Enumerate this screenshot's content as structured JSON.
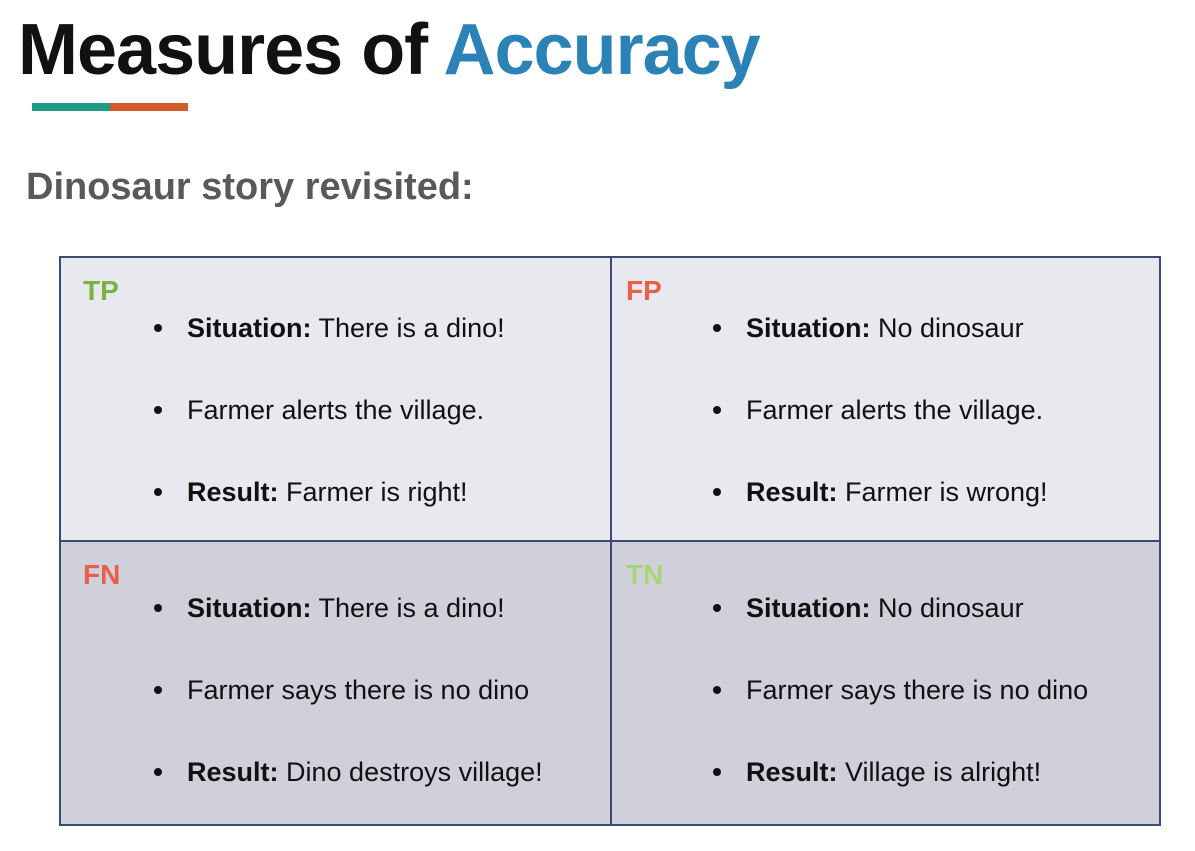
{
  "title": {
    "word1": "Measures of",
    "word2": "Accuracy"
  },
  "underline_colors": [
    "#1e9b86",
    "#d3582a"
  ],
  "subtitle": "Dinosaur story revisited:",
  "cells": {
    "tp": {
      "label": "TP",
      "label_color": "#7ab342",
      "bullets": [
        {
          "bold": "Situation:",
          "text": " There is a dino!"
        },
        {
          "bold": "",
          "text": "Farmer alerts the village."
        },
        {
          "bold": "Result:",
          "text": " Farmer is right!"
        }
      ]
    },
    "fp": {
      "label": "FP",
      "label_color": "#e8604a",
      "bullets": [
        {
          "bold": "Situation:",
          "text": " No dinosaur"
        },
        {
          "bold": "",
          "text": "Farmer alerts the village."
        },
        {
          "bold": "Result:",
          "text": " Farmer is wrong!"
        }
      ]
    },
    "fn": {
      "label": "FN",
      "label_color": "#e8604a",
      "bullets": [
        {
          "bold": "Situation:",
          "text": " There is a dino!"
        },
        {
          "bold": "",
          "text": "Farmer says there is no dino"
        },
        {
          "bold": "Result:",
          "text": " Dino destroys village!"
        }
      ]
    },
    "tn": {
      "label": "TN",
      "label_color": "#a8d57a",
      "bullets": [
        {
          "bold": "Situation:",
          "text": " No dinosaur"
        },
        {
          "bold": "",
          "text": "Farmer says there is no dino"
        },
        {
          "bold": "Result:",
          "text": " Village is alright!"
        }
      ]
    }
  }
}
